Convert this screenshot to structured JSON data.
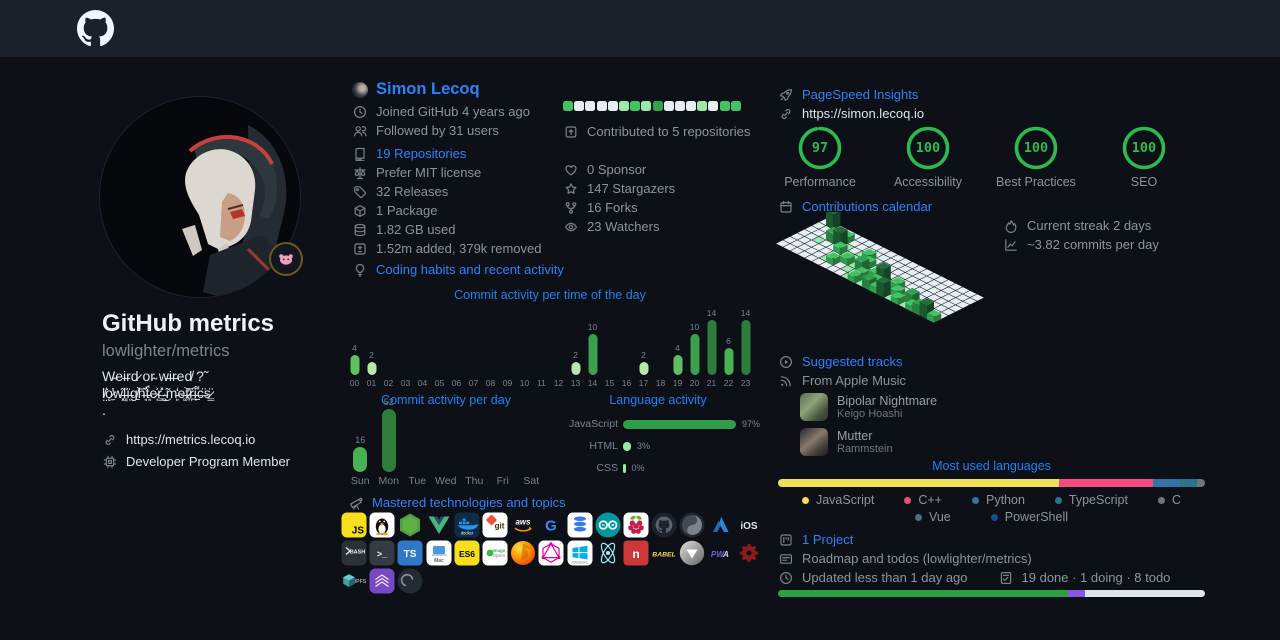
{
  "colors": {
    "background": "#0d1117",
    "header": "#1b212b",
    "link_blue": "#2f81f7",
    "text_gray": "#8b949e",
    "text_white": "#dfe5ec",
    "ring_green": "#2dba4e",
    "square_palette": [
      "#e6edf3",
      "#9be9a8",
      "#40c463",
      "#30a14e"
    ],
    "iso_palette": [
      "#9be9a8",
      "#40c463",
      "#30a14e",
      "#216e39"
    ]
  },
  "header": {
    "logo_icon": "github-octocat"
  },
  "sidebar": {
    "title": "GitHub metrics",
    "subtitle": "lowlighter/metrics",
    "bio_lines": [
      "W̴ei̶rd̷ or̴ w̶ir̵ed̸ ?̃",
      "l̸̤͘ǫ̷̼̓w̶͓̋l̵̻̈ï̶̜g̸̱͝h̶̘̏ẗ̵̘́e̷͎͐r̶͇̽͜ ̴̦̃m̵̙̒e̶͚͝t̷̞̔r̶̪̈i̵̱͌c̶̣̈s̷͇̈",
      "."
    ],
    "website": "https://metrics.lecoq.io",
    "membership": "Developer Program Member"
  },
  "profile": {
    "name": "Simon Lecoq",
    "rows_account": [
      {
        "icon": "clock",
        "text": "Joined GitHub 4 years ago"
      },
      {
        "icon": "people",
        "text": "Followed by 31 users"
      }
    ],
    "rows_repos": [
      {
        "icon": "repo",
        "text": "19 Repositories",
        "style": "link"
      },
      {
        "icon": "law",
        "text": "Prefer MIT license"
      },
      {
        "icon": "tag",
        "text": "32 Releases"
      },
      {
        "icon": "package",
        "text": "1 Package"
      },
      {
        "icon": "database",
        "text": "1.82 GB used"
      },
      {
        "icon": "diff",
        "text": "1.52m added, 379k removed"
      }
    ],
    "habits_title": "Coding habits and recent activity"
  },
  "community": {
    "calendar_squares": [
      2,
      0,
      0,
      0,
      0,
      1,
      2,
      1,
      3,
      0,
      0,
      0,
      1,
      0,
      2,
      2
    ],
    "contributed": "Contributed to 5 repositories",
    "rows": [
      {
        "icon": "heart",
        "text": "0 Sponsor"
      },
      {
        "icon": "star",
        "text": "147 Stargazers"
      },
      {
        "icon": "fork",
        "text": "16 Forks"
      },
      {
        "icon": "eye",
        "text": "23 Watchers"
      }
    ]
  },
  "chart_data": [
    {
      "type": "bar",
      "title": "Commit activity per time of the day",
      "categories": [
        "00",
        "01",
        "02",
        "03",
        "04",
        "05",
        "06",
        "07",
        "08",
        "09",
        "10",
        "11",
        "12",
        "13",
        "14",
        "15",
        "16",
        "17",
        "18",
        "19",
        "20",
        "21",
        "22",
        "23"
      ],
      "values": [
        4,
        2,
        0,
        0,
        0,
        0,
        0,
        0,
        0,
        0,
        0,
        0,
        0,
        2,
        10,
        0,
        0,
        2,
        0,
        4,
        10,
        14,
        6,
        14
      ],
      "ylim": [
        0,
        14
      ],
      "grid": false
    },
    {
      "type": "bar",
      "title": "Commit activity per day",
      "categories": [
        "Sun",
        "Mon",
        "Tue",
        "Wed",
        "Thu",
        "Fri",
        "Sat"
      ],
      "values": [
        16,
        52,
        0,
        0,
        0,
        0,
        0
      ],
      "ylim": [
        0,
        52
      ],
      "grid": false
    },
    {
      "type": "bar",
      "title": "Language activity",
      "categories": [
        "JavaScript",
        "HTML",
        "CSS"
      ],
      "values": [
        97,
        3,
        0
      ],
      "unit": "%"
    },
    {
      "type": "bar",
      "title": "Most used languages",
      "series": [
        {
          "name": "JavaScript",
          "pct": 65.8,
          "color": "#f1e05a"
        },
        {
          "name": "C++",
          "pct": 22.0,
          "color": "#f34b7d"
        },
        {
          "name": "Python",
          "pct": 6.3,
          "color": "#3572a5"
        },
        {
          "name": "TypeScript",
          "pct": 4.0,
          "color": "#2b7489"
        },
        {
          "name": "C",
          "pct": 1.9,
          "color": "#6e7681"
        }
      ],
      "legend_extra": [
        {
          "name": "Vue",
          "color": "#4e6e7e"
        },
        {
          "name": "PowerShell",
          "color": "#1a4c8b"
        }
      ],
      "legend_position": "bottom"
    },
    {
      "type": "heatmap",
      "title": "Contributions calendar (isometric)",
      "cols": 22,
      "rows": 7,
      "cells": [
        [
          1,
          0,
          4
        ],
        [
          3,
          1,
          1
        ],
        [
          4,
          1,
          2
        ],
        [
          3,
          2,
          3
        ],
        [
          4,
          2,
          4
        ],
        [
          5,
          2,
          1
        ],
        [
          2,
          3,
          1
        ],
        [
          5,
          3,
          2
        ],
        [
          6,
          3,
          1
        ],
        [
          7,
          2,
          1
        ],
        [
          8,
          2,
          2
        ],
        [
          7,
          3,
          1
        ],
        [
          8,
          3,
          1
        ],
        [
          9,
          3,
          2
        ],
        [
          10,
          2,
          1
        ],
        [
          11,
          3,
          1
        ],
        [
          13,
          3,
          1
        ],
        [
          6,
          4,
          1
        ],
        [
          7,
          4,
          2
        ],
        [
          8,
          4,
          1
        ],
        [
          9,
          4,
          3
        ],
        [
          10,
          4,
          1
        ],
        [
          11,
          4,
          2
        ],
        [
          12,
          4,
          4
        ],
        [
          14,
          4,
          2
        ],
        [
          16,
          4,
          1
        ],
        [
          18,
          4,
          1
        ],
        [
          5,
          5,
          1
        ],
        [
          6,
          5,
          2
        ],
        [
          8,
          5,
          1
        ],
        [
          10,
          5,
          2
        ],
        [
          11,
          5,
          1
        ],
        [
          12,
          5,
          2
        ],
        [
          13,
          5,
          1
        ],
        [
          14,
          5,
          1
        ],
        [
          15,
          5,
          2
        ],
        [
          16,
          5,
          1
        ],
        [
          17,
          5,
          3
        ],
        [
          19,
          5,
          1
        ],
        [
          9,
          6,
          1
        ],
        [
          10,
          6,
          2
        ],
        [
          11,
          6,
          1
        ],
        [
          12,
          6,
          3
        ],
        [
          13,
          6,
          2
        ],
        [
          14,
          6,
          4
        ],
        [
          15,
          6,
          1
        ],
        [
          16,
          6,
          2
        ],
        [
          17,
          6,
          1
        ],
        [
          18,
          6,
          2
        ],
        [
          19,
          6,
          3
        ],
        [
          20,
          6,
          4
        ],
        [
          21,
          6,
          2
        ]
      ]
    }
  ],
  "pagespeed": {
    "title": "PageSpeed Insights",
    "url": "https://simon.lecoq.io",
    "scores": [
      {
        "label": "Performance",
        "value": 97
      },
      {
        "label": "Accessibility",
        "value": 100
      },
      {
        "label": "Best Practices",
        "value": 100
      },
      {
        "label": "SEO",
        "value": 100
      }
    ]
  },
  "calendar": {
    "title": "Contributions calendar",
    "streak": "Current streak 2 days",
    "average": "~3.82 commits per day"
  },
  "tracks": {
    "title": "Suggested tracks",
    "source": "From Apple Music",
    "items": [
      {
        "title": "Bipolar Nightmare",
        "artist": "Keigo Hoashi"
      },
      {
        "title": "Mutter",
        "artist": "Rammstein"
      }
    ]
  },
  "most_used_title": "Most used languages",
  "project": {
    "title": "1 Project",
    "name": "Roadmap and todos (lowlighter/metrics)",
    "updated": "Updated less than 1 day ago",
    "counts": "19 done · 1 doing · 8 todo",
    "progress": [
      {
        "color": "#2ea043",
        "pct": 67.9
      },
      {
        "color": "#8957e5",
        "pct": 4.0
      },
      {
        "color": "#dfe5ec",
        "pct": 28.1
      }
    ]
  },
  "tech": {
    "title": "Mastered technologies and topics",
    "rows": [
      [
        {
          "name": "javascript",
          "label": "JS"
        },
        {
          "name": "linux"
        },
        {
          "name": "nodejs"
        },
        {
          "name": "vuejs"
        },
        {
          "name": "docker",
          "label": "docker"
        },
        {
          "name": "git",
          "label": "git"
        },
        {
          "name": "aws",
          "label": "aws"
        },
        {
          "name": "google",
          "label": "G"
        },
        {
          "name": "database"
        },
        {
          "name": "arduino"
        },
        {
          "name": "raspberrypi"
        },
        {
          "name": "github"
        },
        {
          "name": "json"
        },
        {
          "name": "azure"
        },
        {
          "name": "ios",
          "label": "iOS"
        }
      ],
      [
        {
          "name": "bash",
          "label": "BASH"
        },
        {
          "name": "terminal",
          "label": ">_"
        },
        {
          "name": "typescript",
          "label": "TS"
        },
        {
          "name": "macos",
          "label": "Mac"
        },
        {
          "name": "es6",
          "label": "ES6"
        },
        {
          "name": "imageoptim",
          "label": "ImageOptim"
        },
        {
          "name": "firefox"
        },
        {
          "name": "graphql"
        },
        {
          "name": "windows",
          "label": "Windows"
        },
        {
          "name": "electron"
        },
        {
          "name": "npm",
          "label": "n"
        },
        {
          "name": "babel",
          "label": "BABEL"
        },
        {
          "name": "vercel"
        },
        {
          "name": "pwa",
          "label": "PWA"
        },
        {
          "name": "rust"
        }
      ],
      [
        {
          "name": "ipfs",
          "label": "IPFS"
        },
        {
          "name": "stitches"
        },
        {
          "name": "deno"
        }
      ]
    ]
  }
}
